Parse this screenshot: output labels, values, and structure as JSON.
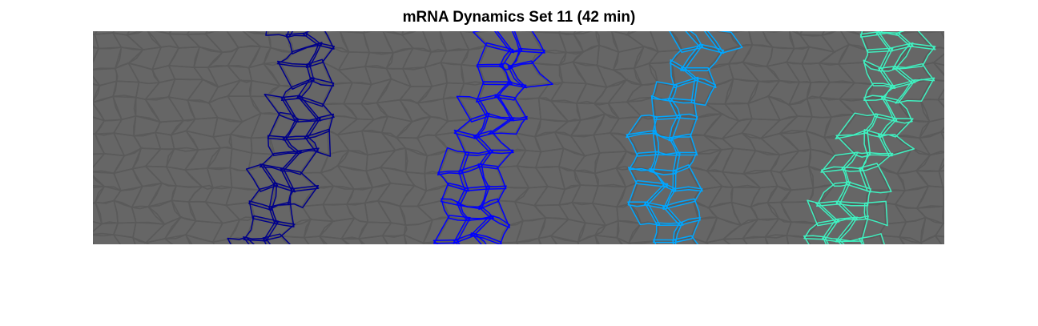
{
  "figure": {
    "title": "mRNA Dynamics Set 11 (42 min)",
    "background_color": "#ffffff"
  },
  "image": {
    "description_tag": "segmented-tissue-cells",
    "background_color": "#666666",
    "cell_edge_color": "#5a5a5a",
    "stripes": [
      {
        "name": "stripe-1",
        "color": "#00008b"
      },
      {
        "name": "stripe-2",
        "color": "#0000ff"
      },
      {
        "name": "stripe-3",
        "color": "#00a6ff"
      },
      {
        "name": "stripe-4",
        "color": "#40f0c0"
      }
    ]
  }
}
